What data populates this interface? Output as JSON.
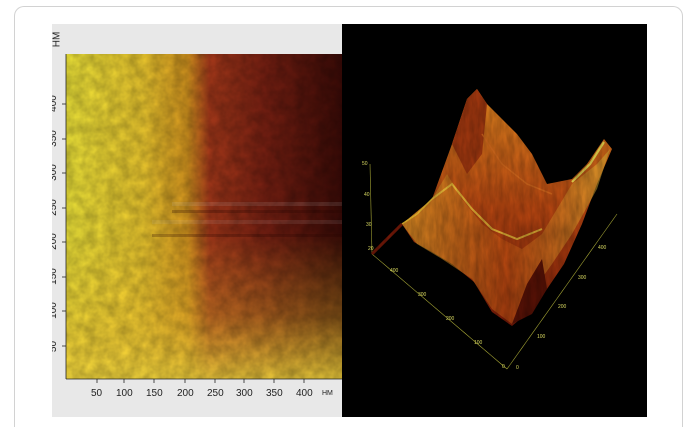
{
  "figure": {
    "left_panel": {
      "description": "2D AFM height map",
      "x_ticks": [
        "50",
        "100",
        "150",
        "200",
        "250",
        "300",
        "350",
        "400"
      ],
      "y_ticks": [
        "50",
        "100",
        "150",
        "200",
        "250",
        "300",
        "350",
        "400"
      ],
      "x_unit": "НМ",
      "y_unit": "НМ"
    },
    "right_panel": {
      "description": "3D AFM surface rendering",
      "z_ticks": [
        "50",
        "40",
        "30",
        "20"
      ],
      "y_axis_ticks": [
        "400",
        "300",
        "200",
        "100",
        "0"
      ],
      "x_axis_ticks": [
        "0",
        "100",
        "200",
        "300",
        "400"
      ]
    },
    "colors": {
      "bright": "#f2e437",
      "mid": "#d68a1c",
      "dark": "#3a0a06",
      "background_3d": "#000000"
    }
  }
}
